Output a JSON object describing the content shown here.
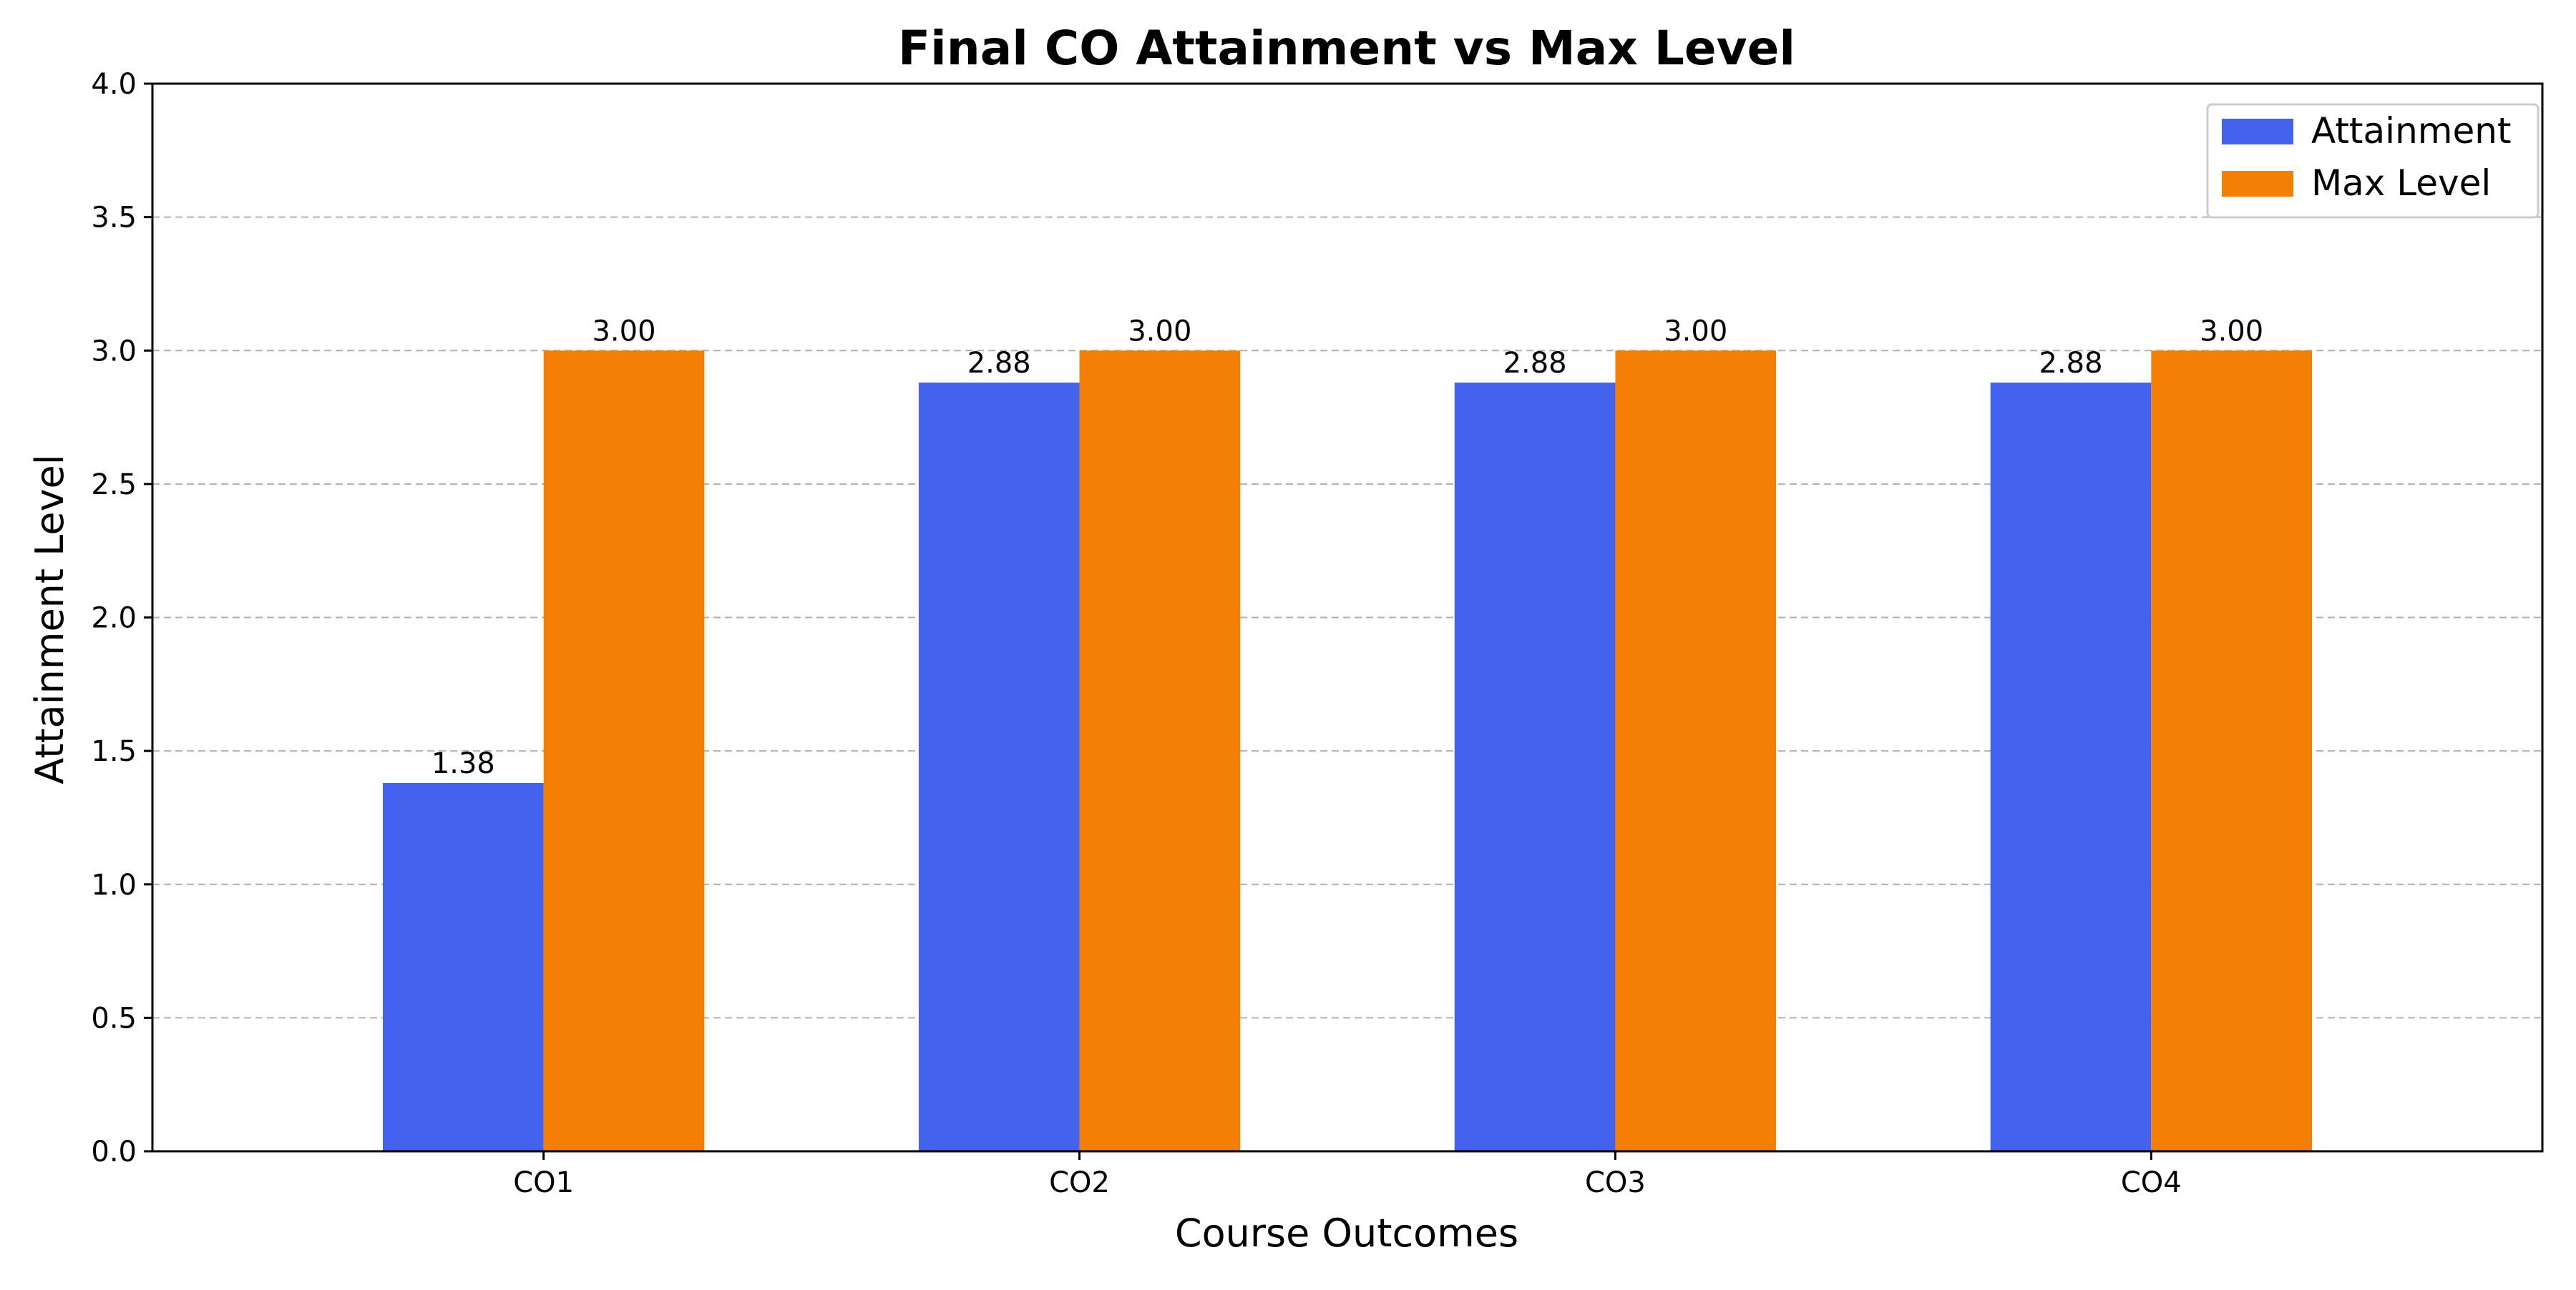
{
  "chart_data": {
    "type": "bar",
    "title": "Final CO Attainment vs Max Level",
    "xlabel": "Course Outcomes",
    "ylabel": "Attainment Level",
    "categories": [
      "CO1",
      "CO2",
      "CO3",
      "CO4"
    ],
    "series": [
      {
        "name": "Attainment",
        "color": "#4363ef",
        "values": [
          1.38,
          2.88,
          2.88,
          2.88
        ],
        "labels": [
          "1.38",
          "2.88",
          "2.88",
          "2.88"
        ]
      },
      {
        "name": "Max Level",
        "color": "#f57f05",
        "values": [
          3.0,
          3.0,
          3.0,
          3.0
        ],
        "labels": [
          "3.00",
          "3.00",
          "3.00",
          "3.00"
        ]
      }
    ],
    "ylim": [
      0,
      4.0
    ],
    "yticks": [
      "0.0",
      "0.5",
      "1.0",
      "1.5",
      "2.0",
      "2.5",
      "3.0",
      "3.5",
      "4.0"
    ],
    "grid": "horizontal dashed",
    "legend": "top-right"
  }
}
